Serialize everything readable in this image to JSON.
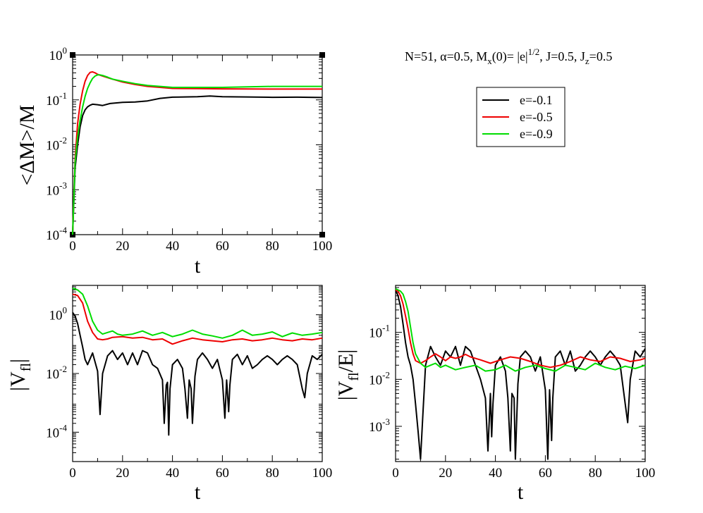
{
  "chart_data": [
    {
      "type": "line",
      "id": "top",
      "xlabel": "t",
      "ylabel": "<ΔM>/M",
      "xlim": [
        0,
        100
      ],
      "ylim_log10": [
        -4,
        0
      ],
      "xticks": [
        "0",
        "20",
        "40",
        "60",
        "80",
        "100"
      ],
      "yticks": [
        {
          "base": "10",
          "exp": "0"
        },
        {
          "base": "10",
          "exp": "-1"
        },
        {
          "base": "10",
          "exp": "-2"
        },
        {
          "base": "10",
          "exp": "-3"
        },
        {
          "base": "10",
          "exp": "-4"
        }
      ],
      "series": [
        {
          "name": "e=-0.1",
          "color": "#000000",
          "x": [
            0,
            1,
            2,
            3,
            4,
            5,
            6,
            7,
            8,
            10,
            12,
            15,
            20,
            25,
            30,
            35,
            40,
            50,
            55,
            60,
            70,
            80,
            90,
            100
          ],
          "y": [
            0.0001,
            0.003,
            0.01,
            0.025,
            0.045,
            0.06,
            0.07,
            0.076,
            0.08,
            0.078,
            0.075,
            0.083,
            0.088,
            0.09,
            0.095,
            0.108,
            0.115,
            0.118,
            0.122,
            0.118,
            0.116,
            0.114,
            0.115,
            0.113
          ]
        },
        {
          "name": "e=-0.5",
          "color": "#ee0000",
          "x": [
            0,
            1,
            2,
            3,
            4,
            5,
            6,
            7,
            8,
            9,
            10,
            12,
            15,
            20,
            25,
            30,
            35,
            40,
            50,
            60,
            70,
            80,
            90,
            100
          ],
          "y": [
            0.0001,
            0.005,
            0.03,
            0.08,
            0.16,
            0.26,
            0.35,
            0.41,
            0.42,
            0.4,
            0.37,
            0.34,
            0.3,
            0.25,
            0.22,
            0.2,
            0.19,
            0.18,
            0.178,
            0.176,
            0.175,
            0.174,
            0.174,
            0.174
          ]
        },
        {
          "name": "e=-0.9",
          "color": "#00dd00",
          "x": [
            0,
            1,
            2,
            3,
            4,
            5,
            6,
            7,
            8,
            9,
            10,
            11,
            12,
            14,
            16,
            20,
            25,
            30,
            35,
            40,
            50,
            60,
            70,
            80,
            90,
            100
          ],
          "y": [
            0.0001,
            0.004,
            0.015,
            0.035,
            0.07,
            0.12,
            0.18,
            0.24,
            0.3,
            0.34,
            0.36,
            0.36,
            0.35,
            0.32,
            0.29,
            0.26,
            0.23,
            0.21,
            0.2,
            0.19,
            0.19,
            0.19,
            0.195,
            0.2,
            0.2,
            0.2
          ]
        }
      ]
    },
    {
      "type": "line",
      "id": "bottom-left",
      "xlabel": "t",
      "ylabel": "|V_fl|",
      "xlim": [
        0,
        100
      ],
      "ylim_log10": [
        -5,
        1
      ],
      "xticks": [
        "0",
        "20",
        "40",
        "60",
        "80",
        "100"
      ],
      "yticks": [
        {
          "base": "10",
          "exp": "0",
          "v": 0
        },
        {
          "base": "10",
          "exp": "-2",
          "v": -2
        },
        {
          "base": "10",
          "exp": "-4",
          "v": -4
        }
      ],
      "series": [
        {
          "name": "e=-0.1",
          "color": "#000000",
          "x": [
            0,
            1,
            2,
            3,
            4,
            5,
            6,
            8,
            10,
            11,
            12,
            14,
            16,
            18,
            20,
            22,
            24,
            26,
            28,
            30,
            32,
            34,
            36,
            36.7,
            37.5,
            38,
            38.5,
            39,
            40,
            42,
            44,
            45,
            46,
            46.7,
            47.5,
            48,
            49,
            50,
            52,
            54,
            56,
            58,
            60,
            61,
            61.7,
            62.5,
            63,
            64,
            66,
            68,
            70,
            72,
            74,
            76,
            78,
            80,
            82,
            84,
            86,
            88,
            90,
            92,
            93,
            94,
            96,
            98,
            100
          ],
          "y": [
            1.2,
            0.9,
            0.5,
            0.2,
            0.08,
            0.03,
            0.02,
            0.05,
            0.012,
            0.0004,
            0.01,
            0.04,
            0.06,
            0.03,
            0.05,
            0.02,
            0.05,
            0.02,
            0.06,
            0.05,
            0.02,
            0.015,
            0.006,
            0.0002,
            0.004,
            0.005,
            8e-05,
            0.003,
            0.02,
            0.03,
            0.015,
            0.003,
            0.0003,
            0.006,
            0.003,
            0.0002,
            0.008,
            0.03,
            0.05,
            0.03,
            0.015,
            0.03,
            0.006,
            0.0003,
            0.006,
            0.0005,
            0.004,
            0.03,
            0.045,
            0.02,
            0.04,
            0.015,
            0.02,
            0.03,
            0.04,
            0.03,
            0.02,
            0.03,
            0.04,
            0.03,
            0.02,
            0.003,
            0.0015,
            0.01,
            0.04,
            0.03,
            0.045
          ]
        },
        {
          "name": "e=-0.5",
          "color": "#ee0000",
          "x": [
            0,
            2,
            4,
            6,
            8,
            10,
            12,
            14,
            16,
            20,
            24,
            28,
            32,
            36,
            40,
            44,
            48,
            52,
            56,
            60,
            64,
            68,
            72,
            76,
            80,
            84,
            88,
            92,
            96,
            100
          ],
          "y": [
            5,
            4.5,
            2.5,
            0.6,
            0.25,
            0.15,
            0.14,
            0.15,
            0.17,
            0.18,
            0.16,
            0.17,
            0.14,
            0.15,
            0.1,
            0.13,
            0.16,
            0.14,
            0.13,
            0.12,
            0.14,
            0.15,
            0.13,
            0.14,
            0.16,
            0.14,
            0.13,
            0.15,
            0.14,
            0.16
          ]
        },
        {
          "name": "e=-0.9",
          "color": "#00dd00",
          "x": [
            0,
            2,
            4,
            6,
            8,
            10,
            12,
            14,
            16,
            18,
            20,
            24,
            28,
            32,
            36,
            40,
            44,
            48,
            52,
            56,
            60,
            64,
            68,
            72,
            76,
            80,
            84,
            88,
            92,
            96,
            100
          ],
          "y": [
            8,
            7,
            5,
            2,
            0.6,
            0.3,
            0.22,
            0.25,
            0.28,
            0.22,
            0.2,
            0.22,
            0.28,
            0.2,
            0.25,
            0.18,
            0.22,
            0.3,
            0.22,
            0.19,
            0.16,
            0.2,
            0.3,
            0.2,
            0.22,
            0.26,
            0.18,
            0.24,
            0.2,
            0.22,
            0.25
          ]
        }
      ]
    },
    {
      "type": "line",
      "id": "bottom-right",
      "xlabel": "t",
      "ylabel": "|V_fl/E|",
      "xlim": [
        0,
        100
      ],
      "ylim_log10": [
        -3.75,
        0
      ],
      "xticks": [
        "0",
        "20",
        "40",
        "60",
        "80",
        "100"
      ],
      "yticks": [
        {
          "base": "10",
          "exp": "-1",
          "v": -1
        },
        {
          "base": "10",
          "exp": "-2",
          "v": -2
        },
        {
          "base": "10",
          "exp": "-3",
          "v": -3
        }
      ],
      "series": [
        {
          "name": "e=-0.1",
          "color": "#000000",
          "x": [
            0,
            1,
            2,
            3,
            4,
            5,
            6,
            7,
            8,
            9,
            10,
            11,
            12,
            14,
            16,
            18,
            20,
            22,
            24,
            26,
            28,
            30,
            32,
            34,
            36,
            37,
            38,
            38.5,
            39,
            40,
            42,
            44,
            45,
            46,
            46.6,
            47.5,
            48,
            49,
            50,
            52,
            54,
            56,
            58,
            60,
            61,
            61.7,
            62.5,
            63,
            64,
            66,
            68,
            70,
            72,
            74,
            76,
            78,
            80,
            82,
            84,
            86,
            88,
            90,
            92,
            93,
            94,
            96,
            98,
            100
          ],
          "y": [
            0.8,
            0.6,
            0.35,
            0.15,
            0.06,
            0.03,
            0.02,
            0.01,
            0.003,
            0.0008,
            0.0002,
            0.002,
            0.02,
            0.05,
            0.03,
            0.02,
            0.04,
            0.03,
            0.05,
            0.02,
            0.05,
            0.04,
            0.02,
            0.01,
            0.004,
            0.0003,
            0.005,
            0.0006,
            0.003,
            0.02,
            0.03,
            0.015,
            0.004,
            0.0003,
            0.005,
            0.004,
            0.0002,
            0.008,
            0.03,
            0.04,
            0.03,
            0.015,
            0.03,
            0.006,
            0.0002,
            0.006,
            0.0005,
            0.004,
            0.03,
            0.04,
            0.02,
            0.04,
            0.015,
            0.02,
            0.03,
            0.04,
            0.03,
            0.02,
            0.03,
            0.04,
            0.03,
            0.02,
            0.003,
            0.0012,
            0.01,
            0.04,
            0.03,
            0.045
          ]
        },
        {
          "name": "e=-0.5",
          "color": "#ee0000",
          "x": [
            0,
            1,
            2,
            3,
            4,
            5,
            6,
            7,
            8,
            10,
            12,
            14,
            16,
            18,
            20,
            22,
            24,
            26,
            28,
            30,
            34,
            38,
            42,
            46,
            50,
            54,
            58,
            62,
            66,
            70,
            74,
            78,
            82,
            86,
            90,
            94,
            98,
            100
          ],
          "y": [
            0.8,
            0.75,
            0.6,
            0.4,
            0.22,
            0.12,
            0.06,
            0.035,
            0.025,
            0.022,
            0.025,
            0.03,
            0.035,
            0.03,
            0.025,
            0.03,
            0.028,
            0.03,
            0.034,
            0.03,
            0.026,
            0.022,
            0.026,
            0.03,
            0.028,
            0.024,
            0.02,
            0.018,
            0.02,
            0.024,
            0.03,
            0.026,
            0.024,
            0.03,
            0.028,
            0.024,
            0.026,
            0.028
          ]
        },
        {
          "name": "e=-0.9",
          "color": "#00dd00",
          "x": [
            0,
            1,
            2,
            3,
            4,
            5,
            6,
            7,
            8,
            10,
            12,
            14,
            16,
            18,
            20,
            24,
            28,
            32,
            36,
            40,
            44,
            48,
            52,
            56,
            60,
            64,
            68,
            72,
            76,
            80,
            84,
            88,
            92,
            96,
            100
          ],
          "y": [
            0.85,
            0.8,
            0.75,
            0.65,
            0.45,
            0.28,
            0.13,
            0.06,
            0.035,
            0.022,
            0.018,
            0.02,
            0.022,
            0.018,
            0.02,
            0.016,
            0.018,
            0.02,
            0.015,
            0.016,
            0.02,
            0.015,
            0.018,
            0.02,
            0.017,
            0.015,
            0.02,
            0.018,
            0.016,
            0.022,
            0.018,
            0.016,
            0.019,
            0.017,
            0.02
          ]
        }
      ]
    }
  ],
  "annotation": {
    "part1": "N=51, α=0.5, M",
    "sub1": "x",
    "part2": "(0)= |e|",
    "sup1": "1/2",
    "part3": ",  J=0.5, J",
    "sub2": "z",
    "part4": "=0.5"
  },
  "legend": {
    "placement": "right of top plot",
    "entries": [
      {
        "label": "e=-0.1",
        "color": "#000000"
      },
      {
        "label": "e=-0.5",
        "color": "#ee0000"
      },
      {
        "label": "e=-0.9",
        "color": "#00dd00"
      }
    ]
  }
}
